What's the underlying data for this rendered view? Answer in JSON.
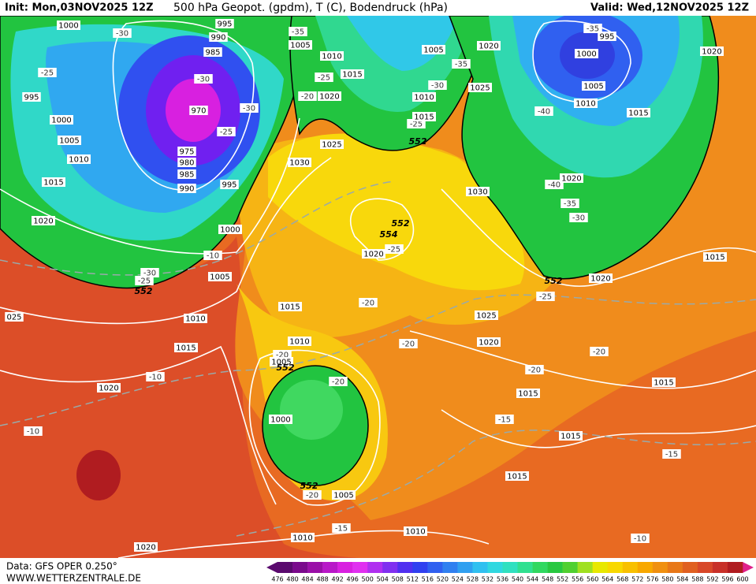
{
  "header": {
    "init": "Init: Mon,03NOV2025 12Z",
    "title": "500 hPa Geopot. (gpdm), T (C), Bodendruck (hPa)",
    "valid": "Valid: Wed,12NOV2025 12Z"
  },
  "footer": {
    "data": "Data: GFS OPER 0.250°",
    "site": "WWW.WETTERZENTRALE.DE"
  },
  "colorbar": {
    "labels": [
      476,
      480,
      484,
      488,
      492,
      496,
      500,
      504,
      508,
      512,
      516,
      520,
      524,
      528,
      532,
      536,
      540,
      544,
      548,
      552,
      556,
      560,
      564,
      568,
      572,
      576,
      580,
      584,
      588,
      592,
      596,
      600
    ],
    "colors": [
      "#5a0a6e",
      "#7a0a8c",
      "#9a10a8",
      "#b818c8",
      "#d820e0",
      "#e030f0",
      "#b030f0",
      "#8030f0",
      "#5030f0",
      "#3040f0",
      "#3060f0",
      "#3080f0",
      "#30a0f0",
      "#30c0f0",
      "#30d8e0",
      "#30e0c0",
      "#30e090",
      "#30d860",
      "#28c840",
      "#50d030",
      "#a0e020",
      "#e8e800",
      "#f8d800",
      "#f8c000",
      "#f8a800",
      "#f09010",
      "#e87818",
      "#e06020",
      "#d84828",
      "#c83028",
      "#b01c20"
    ],
    "end_color": "#e0208a"
  },
  "isobar_labels": [
    "1000",
    "995",
    "990",
    "985",
    "995",
    "1000",
    "1005",
    "1010",
    "1015",
    "1020",
    "970",
    "975",
    "980",
    "985",
    "990",
    "995",
    "1000",
    "1005",
    "1010",
    "1015",
    "1020",
    "1020",
    "1010",
    "1005",
    "1000",
    "1005",
    "1010",
    "1015",
    "1020",
    "1025",
    "1030",
    "1020",
    "1015",
    "1010",
    "1005",
    "1005",
    "1010",
    "1015",
    "1025",
    "1020",
    "1030",
    "1020",
    "1000",
    "1005",
    "1010",
    "995",
    "1015",
    "1020",
    "1015",
    "1020",
    "1025",
    "1020",
    "1015",
    "1015",
    "1015",
    "1015",
    "1010",
    "025"
  ],
  "temperature_labels": [
    "-30",
    "-25",
    "-30",
    "-30",
    "-25",
    "-35",
    "-25",
    "-20",
    "-30",
    "-35",
    "-25",
    "-40",
    "-40",
    "-35",
    "-30",
    "-35",
    "-10",
    "-30",
    "-25",
    "-25",
    "-20",
    "-20",
    "-20",
    "-25",
    "-20",
    "-20",
    "-20",
    "-20",
    "-15",
    "-15",
    "-15",
    "-10",
    "-10",
    "-10"
  ],
  "geopotential_labels": [
    "552",
    "552",
    "554",
    "552",
    "552",
    "552",
    "552"
  ]
}
